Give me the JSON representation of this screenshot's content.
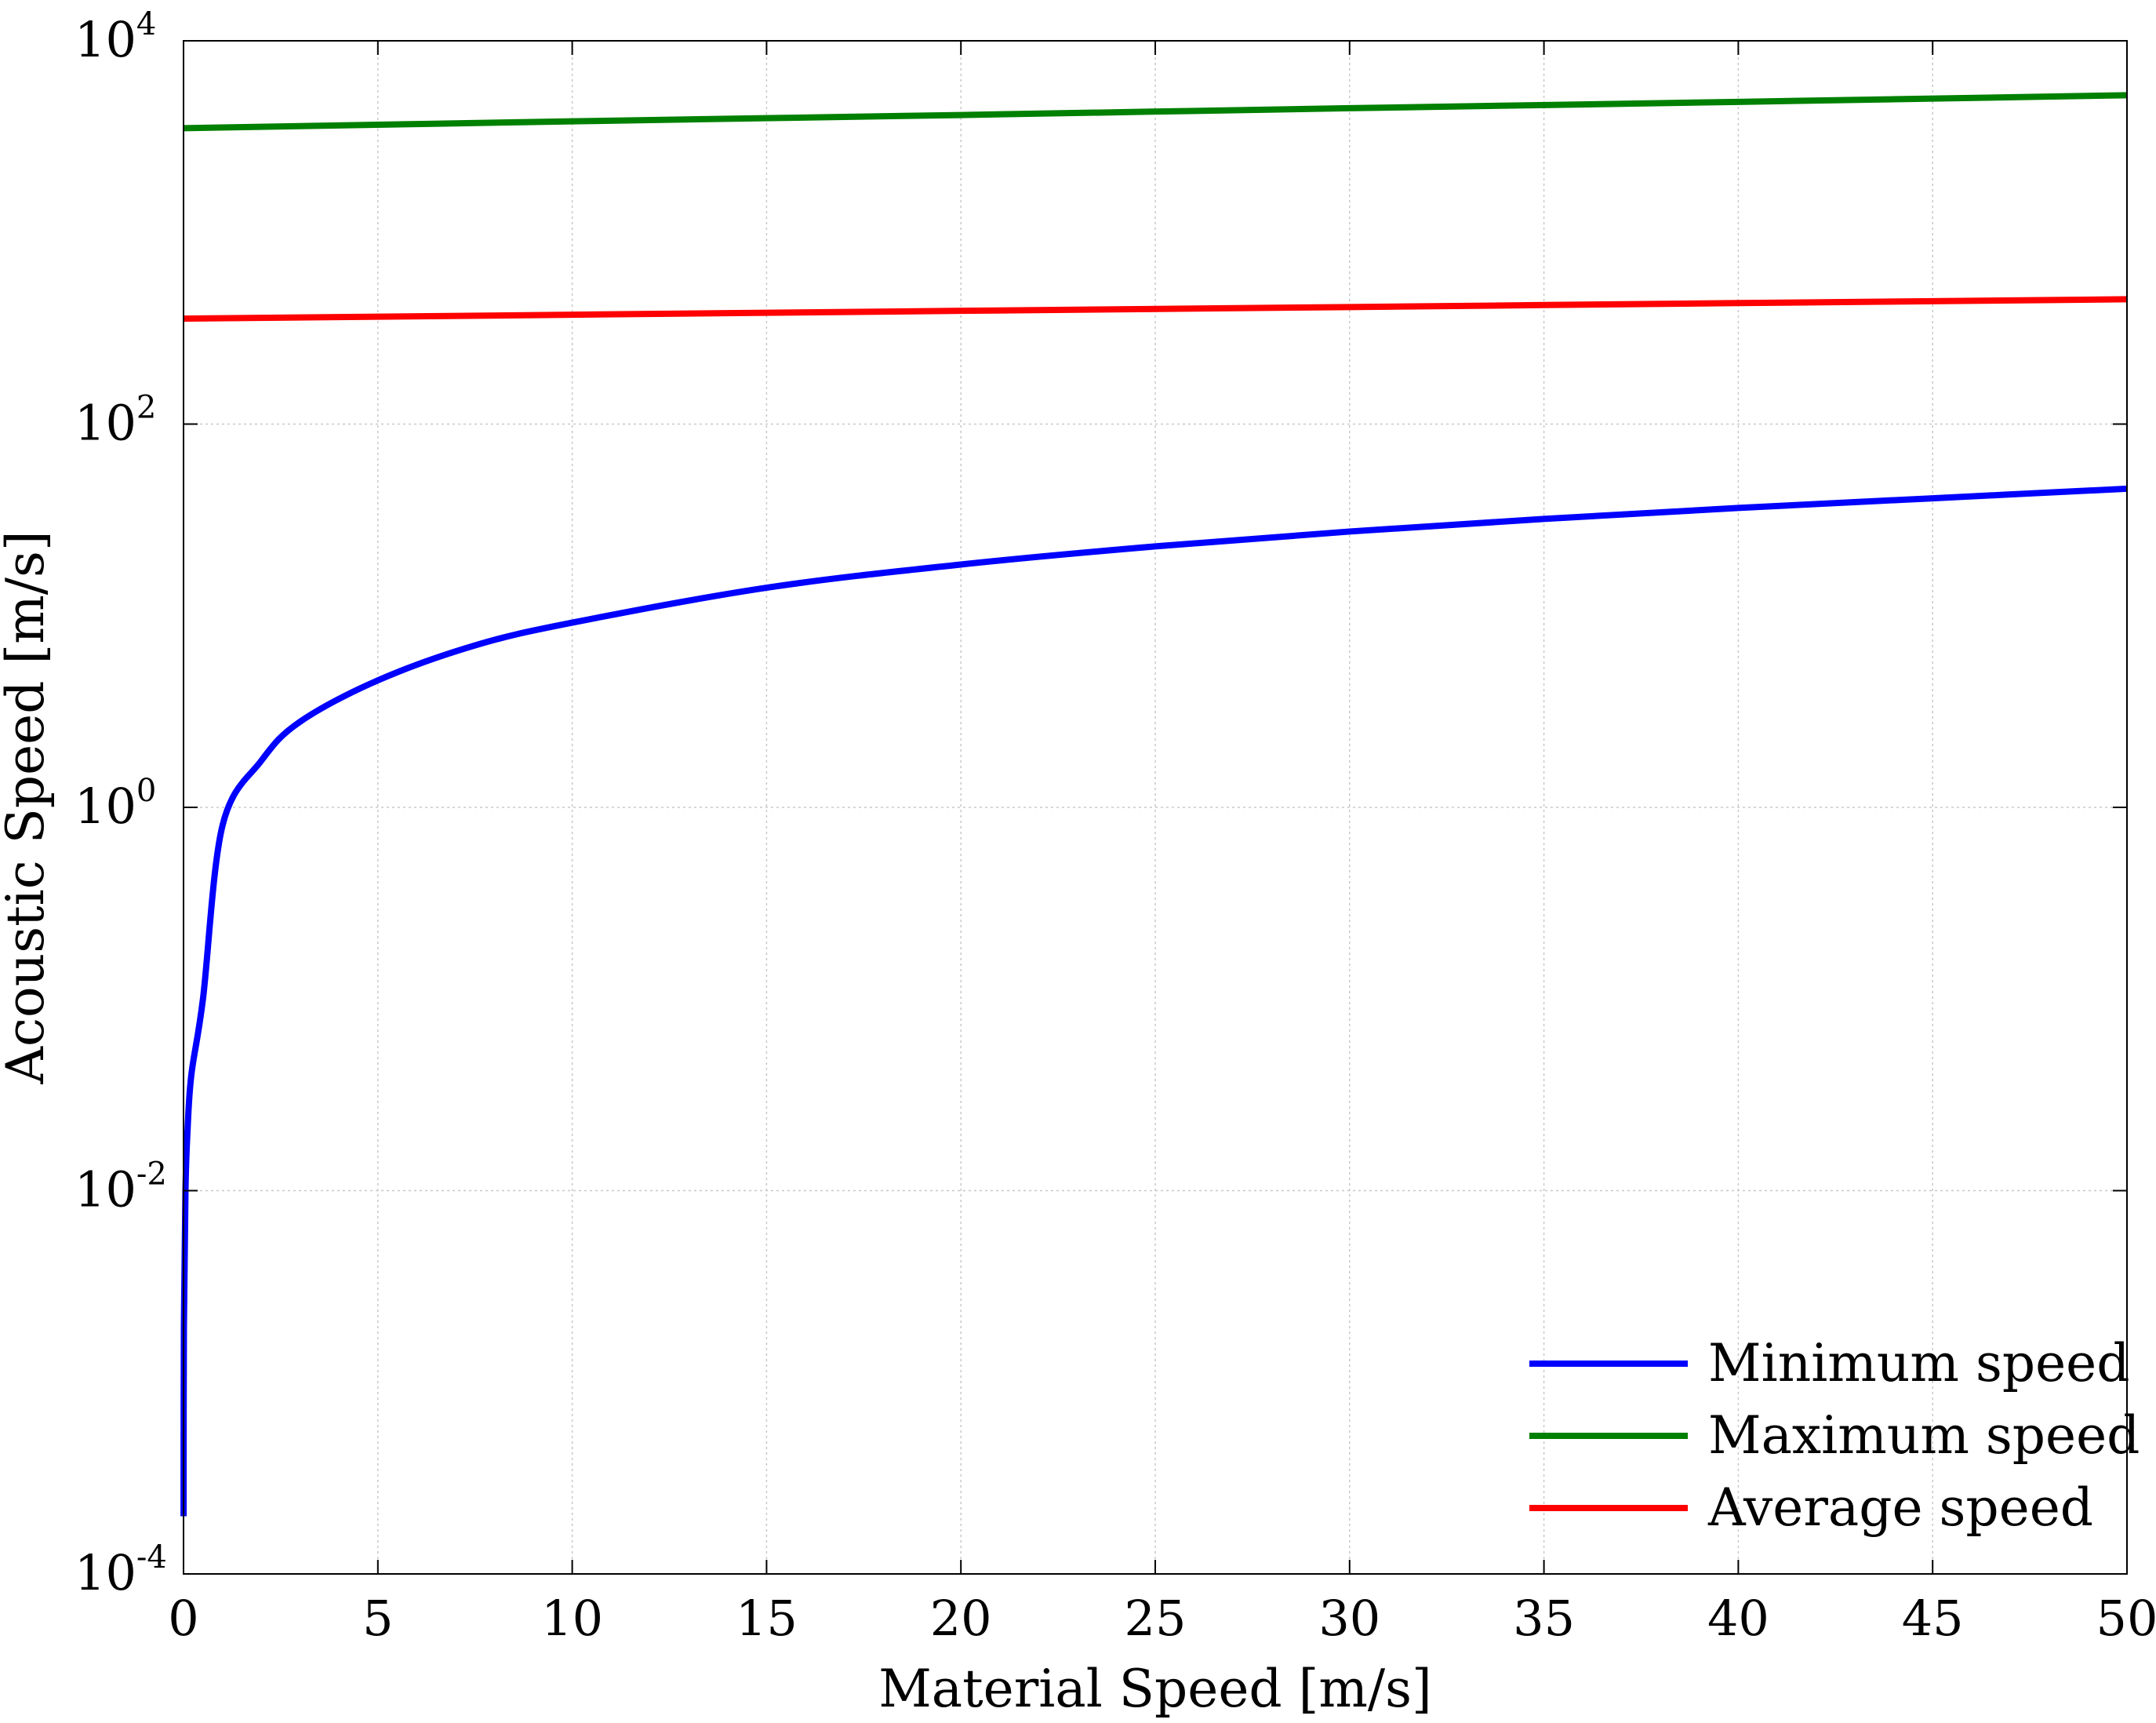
{
  "chart_data": {
    "type": "line",
    "xlabel": "Material Speed [m/s]",
    "ylabel": "Acoustic Speed [m/s]",
    "xlim": [
      0,
      50
    ],
    "ylim": [
      0.0001,
      10000
    ],
    "yscale": "log",
    "grid": true,
    "legend_position": "bottom-right",
    "x_ticks": [
      "0",
      "5",
      "10",
      "15",
      "20",
      "25",
      "30",
      "35",
      "40",
      "45",
      "50"
    ],
    "y_ticks": [
      {
        "base": "10",
        "exp": "-4"
      },
      {
        "base": "10",
        "exp": "-2"
      },
      {
        "base": "10",
        "exp": "0"
      },
      {
        "base": "10",
        "exp": "2"
      },
      {
        "base": "10",
        "exp": "4"
      }
    ],
    "series": [
      {
        "name": "Minimum speed",
        "color": "#0000ff",
        "x": [
          0.001,
          0.01,
          0.05,
          0.1,
          0.2,
          0.5,
          1,
          2,
          3,
          5,
          7.5,
          10,
          15,
          20,
          25,
          30,
          35,
          40,
          45,
          50
        ],
        "y": [
          0.0002,
          0.002,
          0.01,
          0.02,
          0.04,
          0.1,
          0.8,
          1.75,
          2.8,
          4.6,
          7.0,
          9.2,
          14.0,
          18.5,
          23.0,
          27.5,
          32.0,
          36.5,
          41.0,
          46.0
        ]
      },
      {
        "name": "Maximum speed",
        "color": "#008000",
        "x": [
          0,
          10,
          20,
          30,
          40,
          50
        ],
        "y": [
          3500,
          3800,
          4100,
          4450,
          4800,
          5200
        ]
      },
      {
        "name": "Average speed",
        "color": "#ff0000",
        "x": [
          0,
          10,
          20,
          30,
          40,
          50
        ],
        "y": [
          355,
          372,
          390,
          408,
          428,
          448
        ]
      }
    ]
  }
}
